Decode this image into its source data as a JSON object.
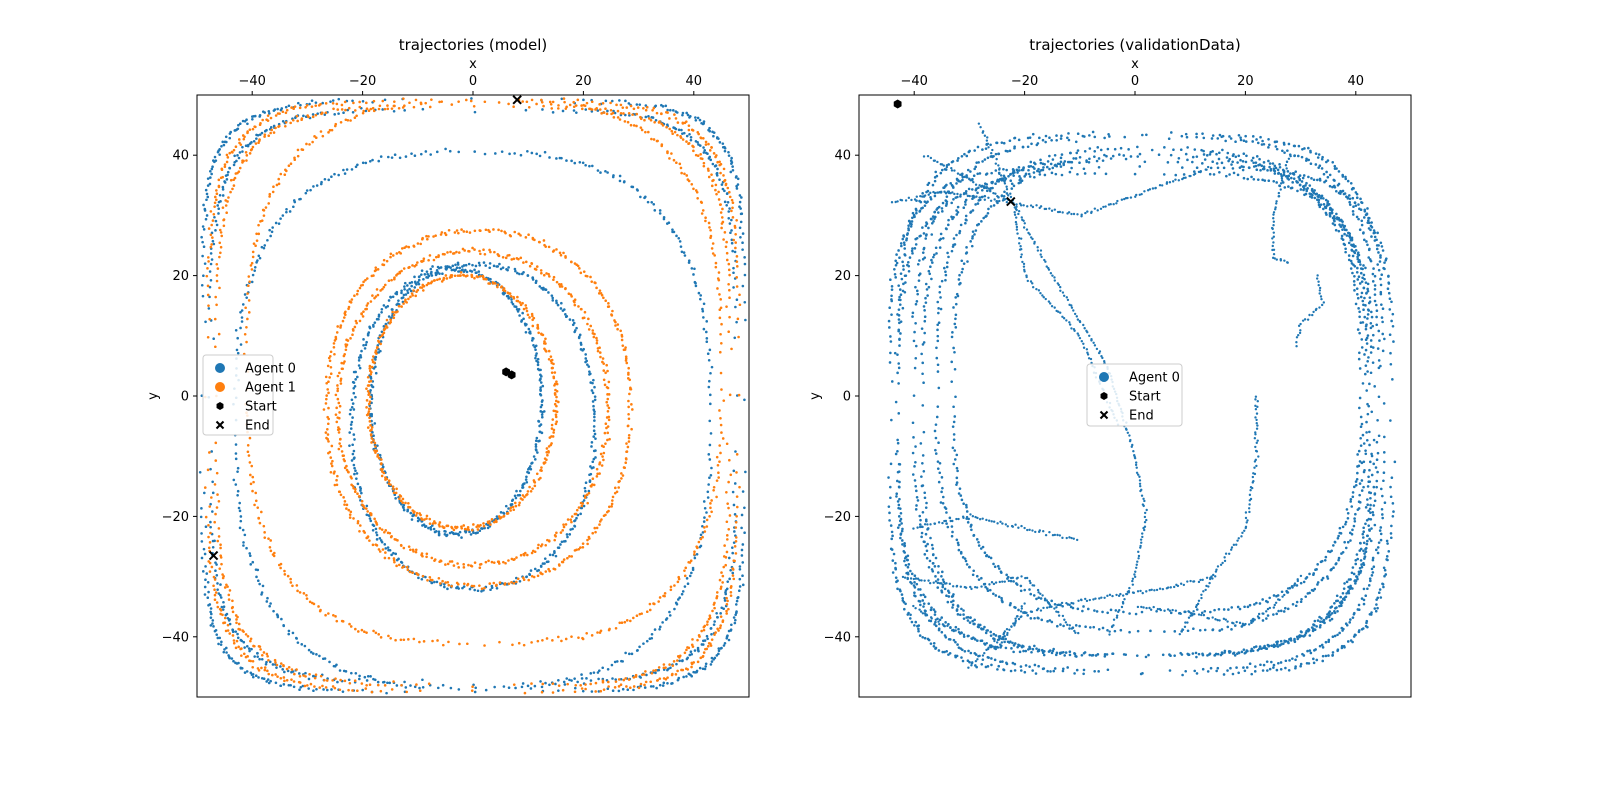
{
  "chart_data": [
    {
      "type": "scatter",
      "title": "trajectories (model)",
      "xlabel": "x",
      "ylabel": "y",
      "xlim": [
        -50,
        50
      ],
      "ylim": [
        -50,
        50
      ],
      "xticks": [
        -40,
        -20,
        0,
        20,
        40
      ],
      "yticks": [
        -40,
        -20,
        0,
        20,
        40
      ],
      "x_axis_position": "top",
      "grid": false,
      "legend": {
        "placement": "center-left",
        "entries": [
          "Agent 0",
          "Agent 1",
          "Start",
          "End"
        ]
      },
      "series": [
        {
          "name": "Agent 0",
          "color": "#1f77b4",
          "rings": [
            {
              "center": [
                0,
                0
              ],
              "rx": 49,
              "ry": 49,
              "squareness": 6
            },
            {
              "center": [
                0,
                0
              ],
              "rx": 47.5,
              "ry": 47.5,
              "squareness": 5
            },
            {
              "center": [
                0,
                -4
              ],
              "rx": 43,
              "ry": 44.5,
              "squareness": 2.8
            },
            {
              "center": [
                0,
                -5
              ],
              "rx": 22,
              "ry": 27,
              "squareness": 2.2
            },
            {
              "center": [
                -3,
                -1
              ],
              "rx": 15.5,
              "ry": 22,
              "squareness": 2
            }
          ]
        },
        {
          "name": "Agent 1",
          "color": "#ff7f0e",
          "rings": [
            {
              "center": [
                0,
                0
              ],
              "rx": 48,
              "ry": 49,
              "squareness": 5
            },
            {
              "center": [
                0,
                0
              ],
              "rx": 46.5,
              "ry": 48,
              "squareness": 4.5
            },
            {
              "center": [
                2,
                4
              ],
              "rx": 43,
              "ry": 45,
              "squareness": 3
            },
            {
              "center": [
                1,
                -2
              ],
              "rx": 27.5,
              "ry": 29.5,
              "squareness": 2.2
            },
            {
              "center": [
                0,
                -2
              ],
              "rx": 24.5,
              "ry": 26,
              "squareness": 2.1
            },
            {
              "center": [
                -2,
                -1
              ],
              "rx": 17,
              "ry": 21,
              "squareness": 2
            }
          ]
        },
        {
          "name": "Start",
          "color": "#000000",
          "marker": "hexagon",
          "points": [
            [
              6,
              4
            ],
            [
              7,
              3.5
            ]
          ]
        },
        {
          "name": "End",
          "color": "#000000",
          "marker": "x",
          "points": [
            [
              8,
              49.2
            ],
            [
              -47,
              -26.5
            ]
          ]
        }
      ]
    },
    {
      "type": "scatter",
      "title": "trajectories (validationData)",
      "xlabel": "x",
      "ylabel": "y",
      "xlim": [
        -50,
        50
      ],
      "ylim": [
        -50,
        50
      ],
      "xticks": [
        -40,
        -20,
        0,
        20,
        40
      ],
      "yticks": [
        -40,
        -20,
        0,
        20,
        40
      ],
      "x_axis_position": "top",
      "grid": false,
      "legend": {
        "placement": "center",
        "entries": [
          "Agent 0",
          "Start",
          "End"
        ]
      },
      "series": [
        {
          "name": "Agent 0",
          "color": "#1f77b4",
          "rings": [
            {
              "center": [
                1,
                -1
              ],
              "rx": 44,
              "ry": 44.5,
              "squareness": 4
            },
            {
              "center": [
                2,
                0
              ],
              "rx": 42,
              "ry": 43,
              "squareness": 3.5
            },
            {
              "center": [
                2,
                -2
              ],
              "rx": 40.5,
              "ry": 41,
              "squareness": 3.5
            },
            {
              "center": [
                3,
                1
              ],
              "rx": 39,
              "ry": 40,
              "squareness": 3
            },
            {
              "center": [
                1,
                -4
              ],
              "rx": 45.5,
              "ry": 42,
              "squareness": 4.5
            },
            {
              "center": [
                4,
                2
              ],
              "rx": 37,
              "ry": 38,
              "squareness": 3
            },
            {
              "center": [
                0,
                -3
              ],
              "rx": 43,
              "ry": 40,
              "squareness": 3.8
            }
          ],
          "paths": [
            [
              [
                -44,
                32
              ],
              [
                -35,
                34
              ],
              [
                -22,
                32
              ],
              [
                -10,
                30
              ],
              [
                5,
                35
              ],
              [
                14,
                38
              ]
            ],
            [
              [
                -38,
                40
              ],
              [
                -30,
                36
              ],
              [
                -22,
                32
              ],
              [
                -15,
                20
              ],
              [
                -5,
                5
              ],
              [
                0,
                -10
              ]
            ],
            [
              [
                -28,
                45
              ],
              [
                -22,
                32
              ],
              [
                -20,
                20
              ],
              [
                -10,
                10
              ],
              [
                -3,
                -5
              ]
            ],
            [
              [
                28,
                40
              ],
              [
                25,
                30
              ],
              [
                25,
                23
              ],
              [
                28,
                22
              ]
            ],
            [
              [
                33,
                20
              ],
              [
                34,
                15
              ],
              [
                30,
                12
              ],
              [
                29,
                8
              ]
            ],
            [
              [
                -40,
                -22
              ],
              [
                -30,
                -20
              ],
              [
                -20,
                -22
              ],
              [
                -10,
                -24
              ]
            ],
            [
              [
                0,
                -10
              ],
              [
                2,
                -20
              ],
              [
                0,
                -30
              ],
              [
                -5,
                -40
              ]
            ],
            [
              [
                22,
                0
              ],
              [
                22,
                -10
              ],
              [
                20,
                -22
              ],
              [
                14,
                -30
              ],
              [
                8,
                -40
              ]
            ],
            [
              [
                -42,
                -30
              ],
              [
                -30,
                -32
              ],
              [
                -20,
                -30
              ],
              [
                -15,
                -35
              ],
              [
                -10,
                -40
              ]
            ],
            [
              [
                -40,
                -35
              ],
              [
                -35,
                -38
              ],
              [
                -25,
                -42
              ],
              [
                -22,
                -38
              ],
              [
                -20,
                -34
              ]
            ],
            [
              [
                30,
                -30
              ],
              [
                25,
                -35
              ],
              [
                20,
                -38
              ],
              [
                10,
                -36
              ],
              [
                0,
                -35
              ]
            ],
            [
              [
                -30,
                -45
              ],
              [
                -20,
                -36
              ],
              [
                -10,
                -34
              ],
              [
                5,
                -32
              ],
              [
                15,
                -30
              ]
            ]
          ]
        },
        {
          "name": "Start",
          "color": "#000000",
          "marker": "hexagon",
          "points": [
            [
              -43,
              48.5
            ]
          ]
        },
        {
          "name": "End",
          "color": "#000000",
          "marker": "x",
          "points": [
            [
              -22.5,
              32.3
            ]
          ]
        }
      ]
    }
  ]
}
